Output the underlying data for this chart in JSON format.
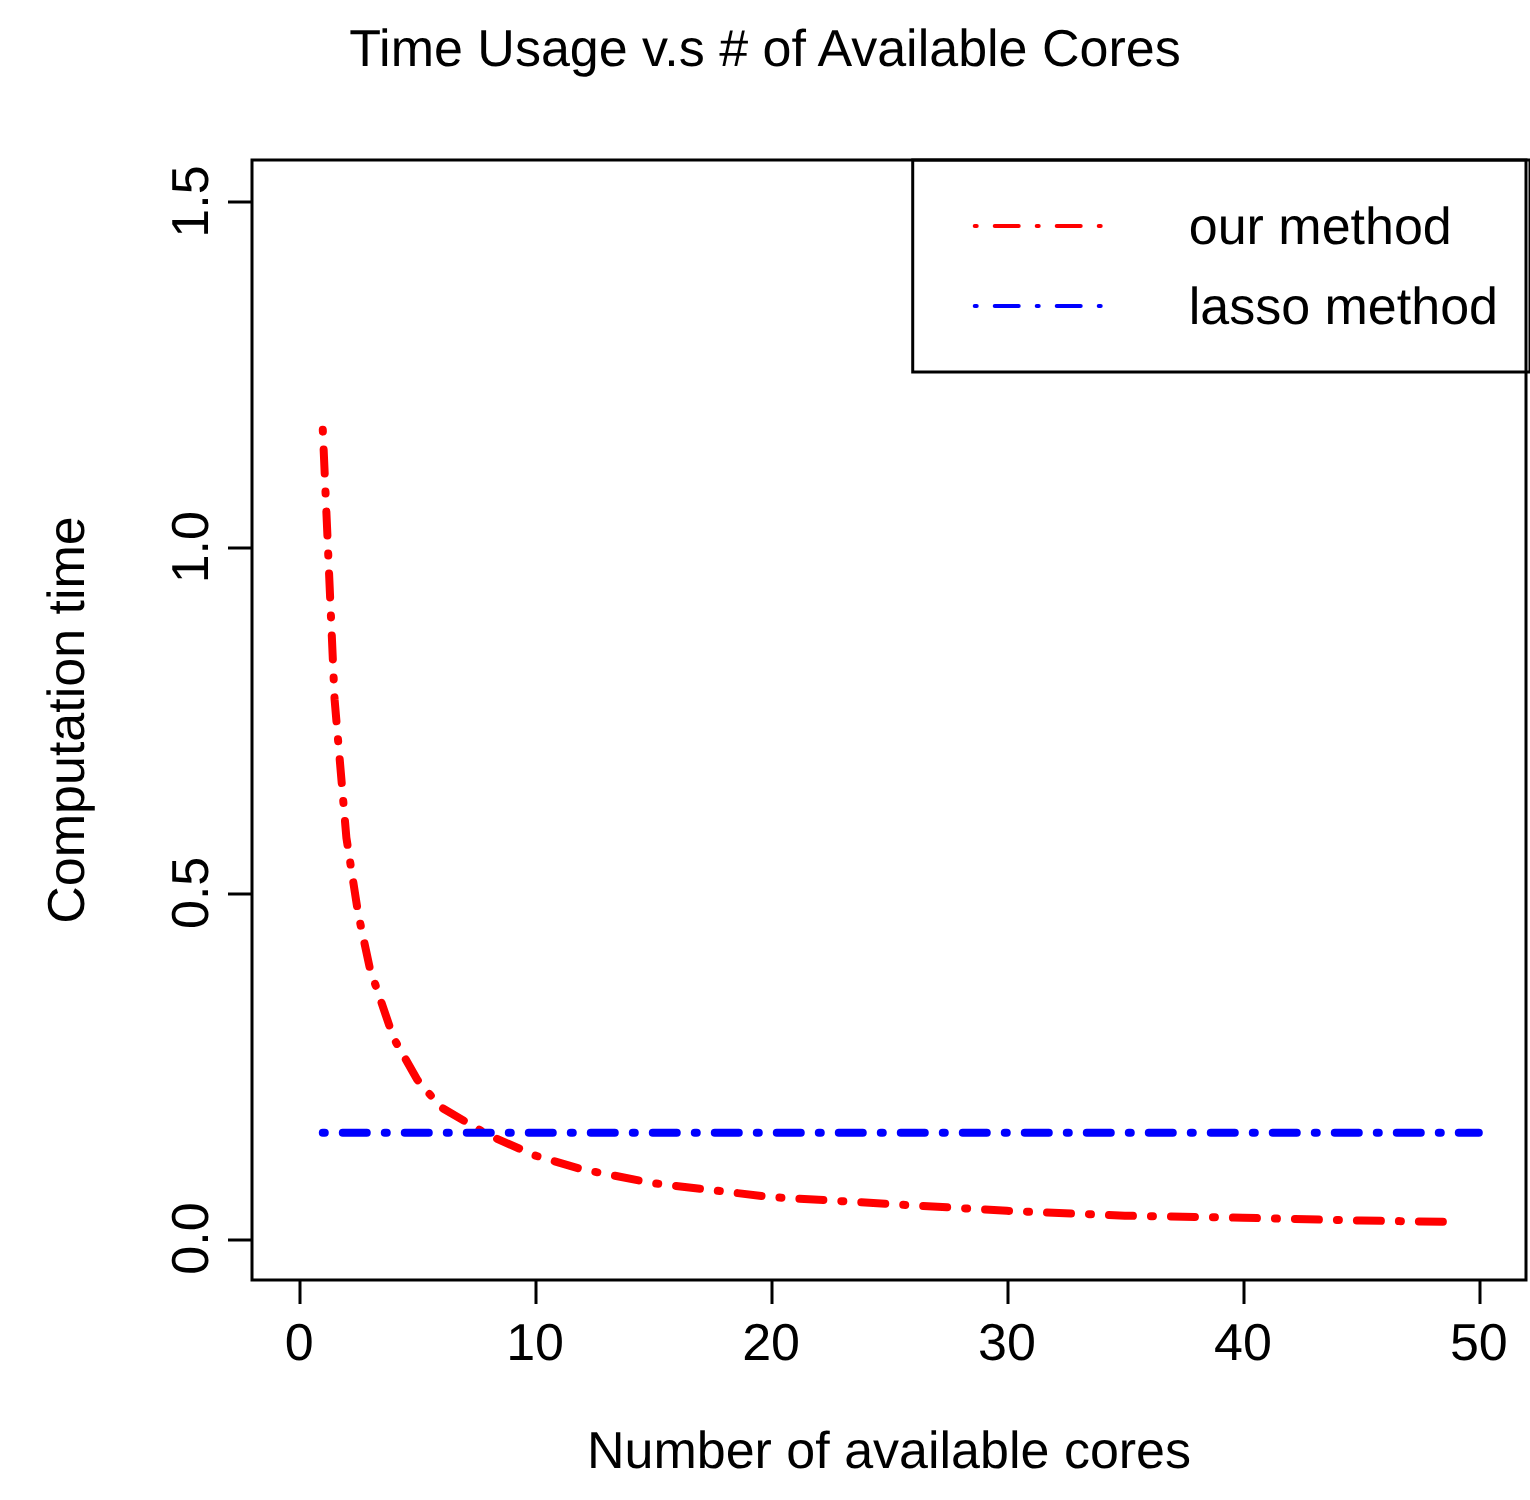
{
  "chart_data": {
    "type": "line",
    "title": "Time Usage v.s # of Available Cores",
    "xlabel": "Number of available cores",
    "ylabel": "Computation time",
    "xlim": [
      -2,
      52
    ],
    "xticks": [
      0,
      10,
      20,
      30,
      40,
      50
    ],
    "ylim": [
      -0.06,
      1.56
    ],
    "yticks": [
      {
        "value": 0,
        "label": "0.0"
      },
      {
        "value": 0.5,
        "label": "0.5"
      },
      {
        "value": 1,
        "label": "1.0"
      },
      {
        "value": 1.5,
        "label": "1.5"
      }
    ],
    "grid": false,
    "legend": "top right",
    "marker": "none",
    "line_style": "dashed",
    "series": [
      {
        "name": "our method",
        "color": "#ff0000",
        "x": [
          1,
          1.5,
          2,
          2.5,
          3,
          4,
          5,
          6,
          7,
          8,
          10,
          12,
          15,
          20,
          25,
          30,
          35,
          40,
          45,
          49
        ],
        "values": [
          1.17,
          0.78,
          0.58,
          0.47,
          0.39,
          0.29,
          0.23,
          0.19,
          0.17,
          0.15,
          0.12,
          0.1,
          0.08,
          0.06,
          0.05,
          0.04,
          0.033,
          0.03,
          0.026,
          0.024
        ]
      },
      {
        "name": "lasso method",
        "color": "#0000ff",
        "x": [
          1,
          50
        ],
        "values": [
          0.153,
          0.153
        ]
      }
    ]
  }
}
